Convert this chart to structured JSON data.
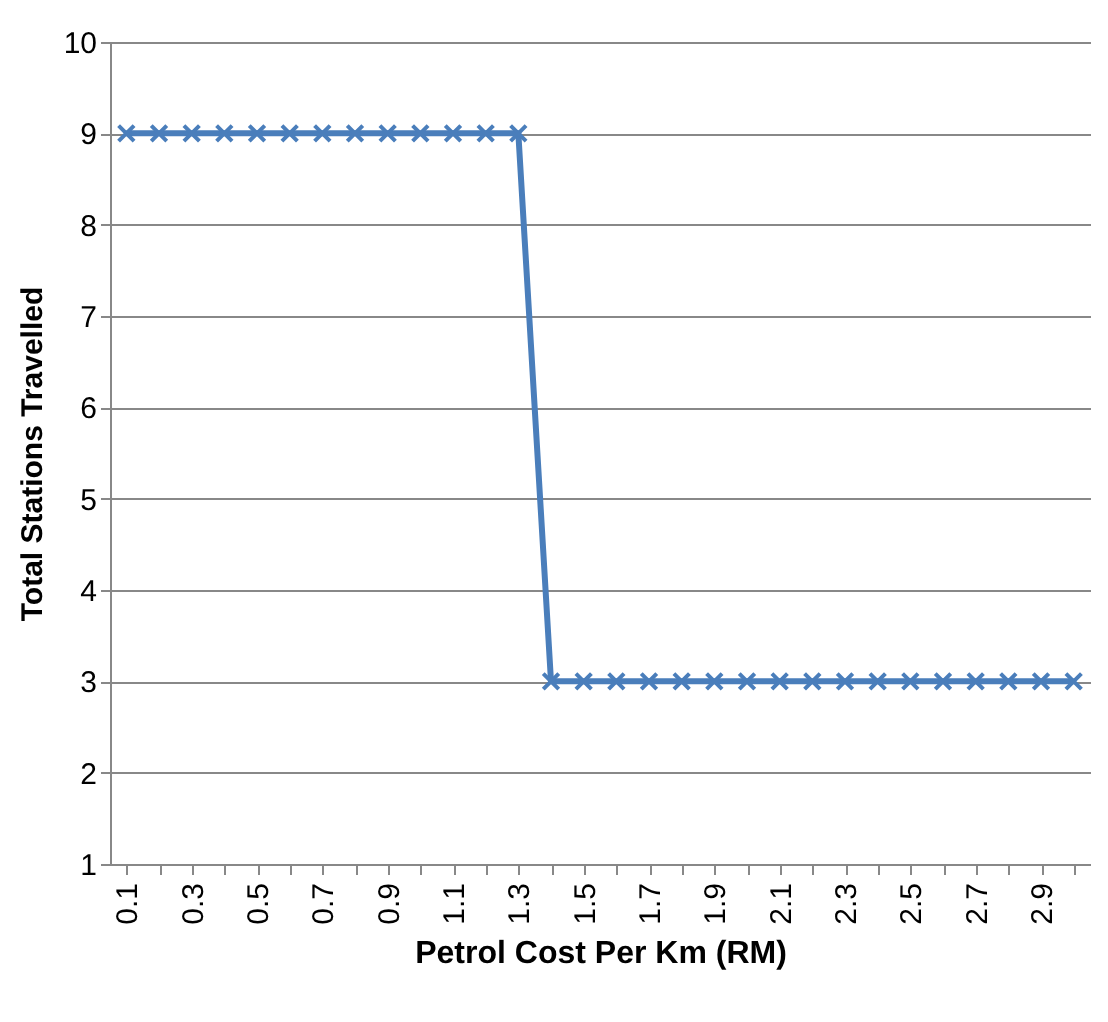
{
  "chart_data": {
    "type": "line",
    "xlabel": "Petrol Cost Per Km (RM)",
    "ylabel": "Total Stations Travelled",
    "categories": [
      "0.1",
      null,
      "0.3",
      null,
      "0.5",
      null,
      "0.7",
      null,
      "0.9",
      null,
      "1.1",
      null,
      "1.3",
      null,
      "1.5",
      null,
      "1.7",
      null,
      "1.9",
      null,
      "2.1",
      null,
      "2.3",
      null,
      "2.5",
      null,
      "2.7",
      null,
      "2.9",
      null
    ],
    "series": [
      {
        "color": "#4a7ebb",
        "values": [
          9,
          9,
          9,
          9,
          9,
          9,
          9,
          9,
          9,
          9,
          9,
          9,
          9,
          3,
          3,
          3,
          3,
          3,
          3,
          3,
          3,
          3,
          3,
          3,
          3,
          3,
          3,
          3,
          3,
          3
        ]
      }
    ],
    "ylim": [
      1,
      10
    ],
    "yticks": [
      1,
      2,
      3,
      4,
      5,
      6,
      7,
      8,
      9,
      10
    ],
    "grid": "y",
    "marker": "cross",
    "line_style": "solid"
  }
}
